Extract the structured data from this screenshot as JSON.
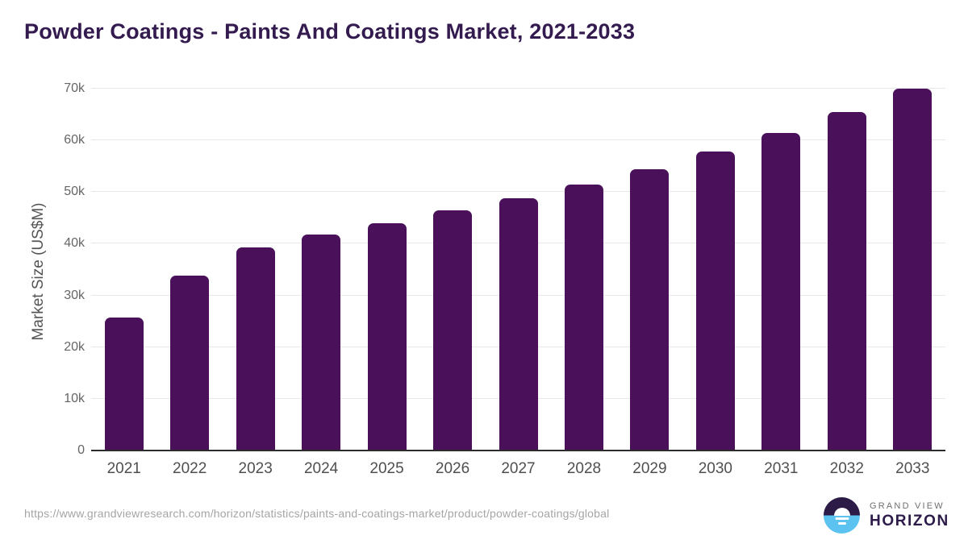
{
  "title": "Powder Coatings - Paints And Coatings Market, 2021-2033",
  "chart_data": {
    "type": "bar",
    "title": "Powder Coatings - Paints And Coatings Market, 2021-2033",
    "categories": [
      "2021",
      "2022",
      "2023",
      "2024",
      "2025",
      "2026",
      "2027",
      "2028",
      "2029",
      "2030",
      "2031",
      "2032",
      "2033"
    ],
    "values": [
      25500,
      33600,
      39200,
      41700,
      43800,
      46300,
      48600,
      51300,
      54200,
      57700,
      61300,
      65300,
      69800
    ],
    "xlabel": "",
    "ylabel": "Market Size (US$M)",
    "ylim": [
      0,
      70000
    ],
    "ytick_step": 10000,
    "ytick_labels": [
      "0",
      "10k",
      "20k",
      "30k",
      "40k",
      "50k",
      "60k",
      "70k"
    ],
    "grid": "horizontal",
    "legend": "none",
    "bar_color": "#4a1059"
  },
  "footer": {
    "source_url": "https://www.grandviewresearch.com/horizon/statistics/paints-and-coatings-market/product/powder-coatings/global",
    "logo": {
      "top_text": "GRAND VIEW",
      "bottom_text": "HORIZON"
    }
  },
  "colors": {
    "title_text": "#331a4f",
    "bar": "#4a1059",
    "gridline": "#e8e8e8",
    "axis_line": "#2c2c2c",
    "tick_text": "#666666",
    "x_tick_text": "#4f4f4f",
    "source_text": "#a5a5a5",
    "logo_dark": "#2c1b47",
    "logo_blue": "#5cc3f0"
  }
}
